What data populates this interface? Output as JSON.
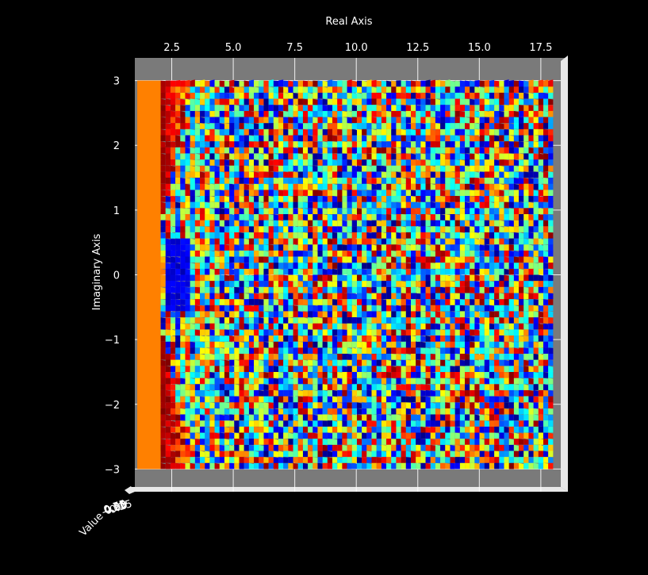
{
  "chart_data": {
    "type": "surface-3d",
    "view": "top-down",
    "colormap": "jet",
    "xlabel": "Real Axis",
    "ylabel": "Imaginary Axis",
    "zlabel": "Value",
    "xlim": [
      1,
      18.6
    ],
    "ylim": [
      -3.35,
      3.35
    ],
    "x_ticks": [
      2.5,
      5.0,
      7.5,
      10.0,
      12.5,
      15.0,
      17.5
    ],
    "x_tick_labels": [
      "2.5",
      "5.0",
      "7.5",
      "10.0",
      "12.5",
      "15.0",
      "17.5"
    ],
    "y_ticks": [
      3,
      2,
      1,
      0,
      -1,
      -2,
      -3
    ],
    "y_tick_labels": [
      "3",
      "2",
      "1",
      "0",
      "−1",
      "−2",
      "−3"
    ],
    "z_tick_labels_overlapping": [
      "0.75",
      "0.50",
      "0.25",
      "0.00",
      "−0.25"
    ],
    "grid": true,
    "pane_color": "#7a7a7a",
    "background": "#000000",
    "surface_x_range": [
      1.1,
      18.0
    ],
    "surface_y_range": [
      -3.0,
      3.0
    ],
    "constant_band": {
      "x_range": [
        1.1,
        2.05
      ],
      "color": "#ff8000"
    },
    "pattern": "noisy oscillating surface; hyperbolic fringe near x≈2 centered on y=0, increasingly noisy for larger x"
  }
}
